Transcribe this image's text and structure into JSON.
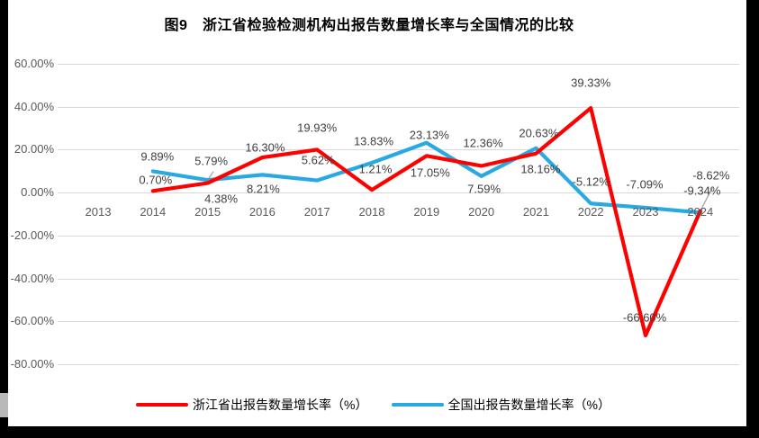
{
  "chart_data": {
    "type": "line",
    "title": "图9　浙江省检验检测机构出报告数量增长率与全国情况的比较",
    "categories": [
      "2013",
      "2014",
      "2015",
      "2016",
      "2017",
      "2018",
      "2019",
      "2020",
      "2021",
      "2022",
      "2023",
      "2024"
    ],
    "series": [
      {
        "name": "浙江省出报告数量增长率（%）",
        "color": "#fe0000",
        "values": [
          null,
          0.7,
          4.38,
          16.3,
          19.93,
          1.21,
          17.05,
          12.36,
          18.16,
          39.33,
          -66.6,
          -8.62
        ]
      },
      {
        "name": "全国出报告数量增长率（%）",
        "color": "#29a9e2",
        "values": [
          null,
          9.89,
          5.79,
          8.21,
          5.62,
          13.83,
          23.13,
          7.59,
          20.63,
          -5.12,
          -7.09,
          -9.34
        ]
      }
    ],
    "y_ticks": [
      "60.00%",
      "40.00%",
      "20.00%",
      "0.00%",
      "-20.00%",
      "-40.00%",
      "-60.00%",
      "-80.00%"
    ],
    "ylim": [
      -80,
      60
    ],
    "grid": true,
    "legend_position": "bottom",
    "data_labels": true,
    "label_format": "0.00%",
    "colors": {
      "gridline": "#d9d9d9",
      "axis_text": "#595959",
      "data_label_text": "#404040",
      "leader_line": "#a6a6a6"
    }
  }
}
